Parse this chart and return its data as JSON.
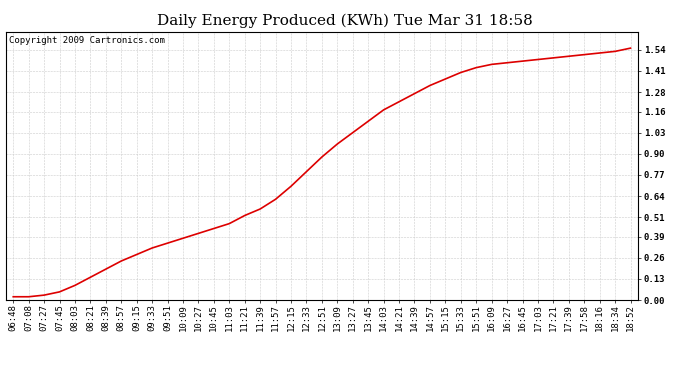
{
  "title": "Daily Energy Produced (KWh) Tue Mar 31 18:58",
  "copyright_text": "Copyright 2009 Cartronics.com",
  "line_color": "#dd0000",
  "background_color": "#ffffff",
  "plot_bg_color": "#ffffff",
  "grid_color": "#cccccc",
  "yticks": [
    0.0,
    0.13,
    0.26,
    0.39,
    0.51,
    0.64,
    0.77,
    0.9,
    1.03,
    1.16,
    1.28,
    1.41,
    1.54
  ],
  "ylim": [
    0.0,
    1.65
  ],
  "x_labels": [
    "06:48",
    "07:08",
    "07:27",
    "07:45",
    "08:03",
    "08:21",
    "08:39",
    "08:57",
    "09:15",
    "09:33",
    "09:51",
    "10:09",
    "10:27",
    "10:45",
    "11:03",
    "11:21",
    "11:39",
    "11:57",
    "12:15",
    "12:33",
    "12:51",
    "13:09",
    "13:27",
    "13:45",
    "14:03",
    "14:21",
    "14:39",
    "14:57",
    "15:15",
    "15:33",
    "15:51",
    "16:09",
    "16:27",
    "16:45",
    "17:03",
    "17:21",
    "17:39",
    "17:58",
    "18:16",
    "18:34",
    "18:52"
  ],
  "y_values": [
    0.02,
    0.02,
    0.03,
    0.05,
    0.09,
    0.14,
    0.19,
    0.24,
    0.28,
    0.32,
    0.35,
    0.38,
    0.41,
    0.44,
    0.47,
    0.52,
    0.56,
    0.62,
    0.7,
    0.79,
    0.88,
    0.96,
    1.03,
    1.1,
    1.17,
    1.22,
    1.27,
    1.32,
    1.36,
    1.4,
    1.43,
    1.45,
    1.46,
    1.47,
    1.48,
    1.49,
    1.5,
    1.51,
    1.52,
    1.53,
    1.55
  ],
  "title_fontsize": 11,
  "tick_fontsize": 6.5,
  "copyright_fontsize": 6.5,
  "fig_width": 6.9,
  "fig_height": 3.75,
  "dpi": 100
}
